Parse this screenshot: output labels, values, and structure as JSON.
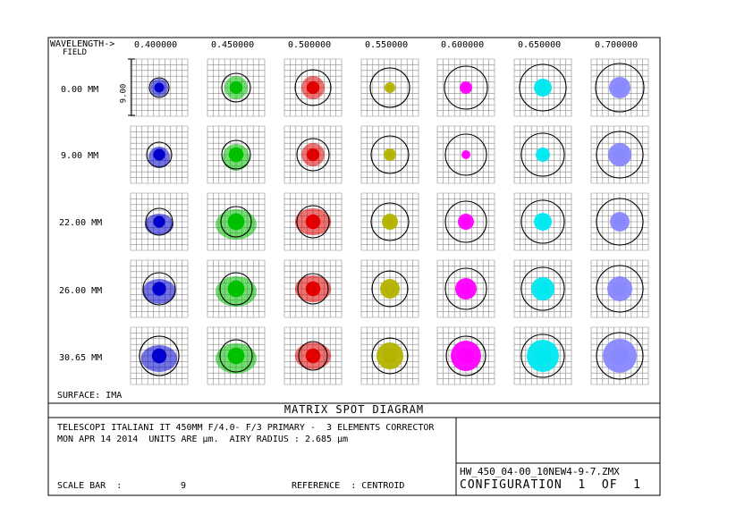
{
  "header": {
    "wavelength_label": "WAVELENGTH->",
    "field_label": "FIELD"
  },
  "wavelengths": [
    {
      "label": "0.400000",
      "color": "#0000cc"
    },
    {
      "label": "0.450000",
      "color": "#00c000"
    },
    {
      "label": "0.500000",
      "color": "#e00000"
    },
    {
      "label": "0.550000",
      "color": "#b3b300"
    },
    {
      "label": "0.600000",
      "color": "#ff00ff"
    },
    {
      "label": "0.650000",
      "color": "#00e8f0"
    },
    {
      "label": "0.700000",
      "color": "#8888ff"
    }
  ],
  "fields": [
    "0.00 MM",
    "9.00 MM",
    "22.00 MM",
    "26.00 MM",
    "30.65 MM"
  ],
  "scale_marker": "9.00",
  "surface": "SURFACE: IMA",
  "diagram_title": "MATRIX SPOT DIAGRAM",
  "description_line1": "TELESCOPI ITALIANI IT 450MM F/4.0- F/3 PRIMARY -  3 ELEMENTS CORRECTOR",
  "description_line2": "MON APR 14 2014  UNITS ARE µm.  AIRY RADIUS : 2.685 µm",
  "scale_bar_label": "SCALE BAR  :",
  "scale_bar_value": "9",
  "reference": "REFERENCE  : CENTROID",
  "filename": "HW_450_04-00_10NEW4-9-7.ZMX",
  "configuration": "CONFIGURATION  1  OF  1"
}
